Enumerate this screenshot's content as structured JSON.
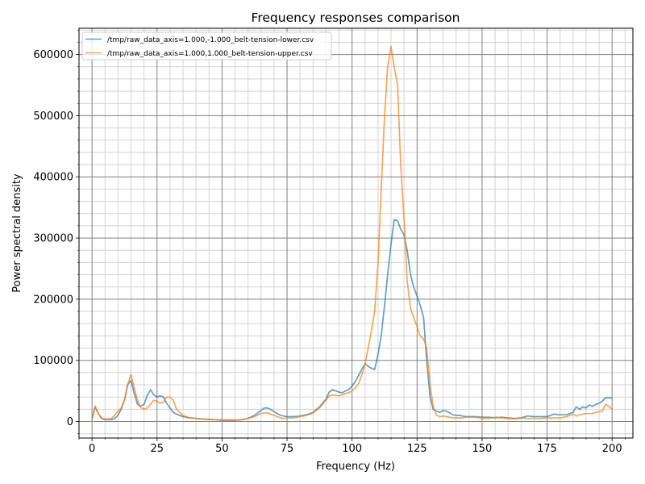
{
  "chart_data": {
    "type": "line",
    "title": "Frequency responses comparison",
    "xlabel": "Frequency (Hz)",
    "ylabel": "Power spectral density",
    "xlim": [
      -5,
      208
    ],
    "ylim": [
      -27000,
      643000
    ],
    "xticks": [
      0,
      25,
      50,
      75,
      100,
      125,
      150,
      175,
      200
    ],
    "xtick_labels": [
      "0",
      "25",
      "50",
      "75",
      "100",
      "125",
      "150",
      "175",
      "200"
    ],
    "yticks": [
      0,
      100000,
      200000,
      300000,
      400000,
      500000,
      600000
    ],
    "ytick_labels": [
      "0",
      "100000",
      "200000",
      "300000",
      "400000",
      "500000",
      "600000"
    ],
    "grid": true,
    "minor_grid": true,
    "legend_position": "top-left",
    "series": [
      {
        "name": "/tmp/raw_data_axis=1.000,-1.000_belt-tension-lower.csv",
        "color": "#1f77b4",
        "x": [
          0,
          1.2,
          2.5,
          3.7,
          5,
          6.2,
          7.5,
          8.7,
          10,
          11.2,
          12.5,
          13.7,
          15,
          16.2,
          17.5,
          18.7,
          20,
          21.2,
          22.5,
          23.7,
          25,
          26.2,
          27.5,
          28.7,
          30,
          31.2,
          32.5,
          33.7,
          35,
          36.2,
          37.5,
          40,
          42.5,
          45,
          47.5,
          50,
          52.5,
          55,
          57.5,
          60,
          62.5,
          65,
          66.2,
          67.5,
          68.7,
          70,
          71.2,
          72.5,
          73.7,
          75,
          77.5,
          80,
          82.5,
          85,
          87.5,
          90,
          91.2,
          92.5,
          93.7,
          95,
          96.2,
          97.5,
          98.7,
          100,
          101.2,
          102.5,
          103.7,
          105,
          106.2,
          107.5,
          108.7,
          110,
          111.2,
          112.5,
          113.7,
          115,
          116.2,
          117.5,
          118.7,
          120,
          121.2,
          122.5,
          123.7,
          125,
          126.2,
          127.5,
          128.7,
          130,
          131.2,
          132.5,
          133.7,
          135,
          136.2,
          137.5,
          138.7,
          140,
          141.2,
          142.5,
          143.7,
          145,
          147.5,
          150,
          152.5,
          155,
          157.5,
          160,
          162.5,
          165,
          167.5,
          170,
          172.5,
          175,
          177.5,
          180,
          182.5,
          185,
          186.2,
          187.5,
          188.7,
          190,
          191.2,
          192.5,
          193.7,
          195,
          196.2,
          197.5,
          198.7,
          200
        ],
        "y": [
          5000,
          24000,
          12000,
          5000,
          3000,
          3000,
          3000,
          5000,
          10000,
          20000,
          35000,
          60000,
          67000,
          46000,
          28000,
          25000,
          28000,
          42000,
          52000,
          44000,
          40000,
          42000,
          40000,
          30000,
          22000,
          15000,
          12000,
          10000,
          8000,
          7000,
          6000,
          5000,
          4000,
          3500,
          3000,
          2000,
          2000,
          2000,
          3000,
          5000,
          10000,
          18000,
          22000,
          22000,
          20000,
          16000,
          13000,
          10000,
          9000,
          8000,
          8000,
          9000,
          11000,
          15000,
          24000,
          37000,
          48000,
          52000,
          50000,
          48000,
          47000,
          50000,
          52000,
          58000,
          65000,
          75000,
          85000,
          95000,
          90000,
          87000,
          85000,
          110000,
          140000,
          190000,
          240000,
          290000,
          330000,
          328000,
          315000,
          305000,
          280000,
          240000,
          220000,
          205000,
          190000,
          170000,
          100000,
          40000,
          20000,
          17000,
          15000,
          18000,
          17000,
          14000,
          11000,
          10000,
          10000,
          9000,
          8000,
          8000,
          8000,
          7000,
          7000,
          6000,
          7000,
          6000,
          5000,
          6000,
          9000,
          8000,
          8000,
          8000,
          12000,
          11000,
          11000,
          15000,
          24000,
          20000,
          24000,
          22000,
          27000,
          25000,
          28000,
          30000,
          33000,
          39000,
          39000,
          38000
        ],
        "x_full": true
      },
      {
        "name": "/tmp/raw_data_axis=1.000,1.000_belt-tension-upper.csv",
        "color": "#ff7f0e",
        "x": [
          0,
          1.2,
          2.5,
          3.7,
          5,
          6.2,
          7.5,
          8.7,
          10,
          11.2,
          12.5,
          13.7,
          15,
          16.2,
          17.5,
          18.7,
          20,
          21.2,
          22.5,
          23.7,
          25,
          26.2,
          27.5,
          28.7,
          30,
          31.2,
          32.5,
          33.7,
          35,
          36.2,
          37.5,
          40,
          42.5,
          45,
          47.5,
          50,
          52.5,
          55,
          57.5,
          60,
          62.5,
          65,
          66.2,
          67.5,
          68.7,
          70,
          71.2,
          72.5,
          73.7,
          75,
          77.5,
          80,
          82.5,
          85,
          87.5,
          90,
          91.2,
          92.5,
          93.7,
          95,
          96.2,
          97.5,
          98.7,
          100,
          101.2,
          102.5,
          103.7,
          105,
          106.2,
          107.5,
          108.7,
          110,
          111.2,
          112.5,
          113.7,
          115,
          116.2,
          117.5,
          118.7,
          120,
          121.2,
          122.5,
          123.7,
          125,
          126.2,
          127.5,
          128.7,
          130,
          131.2,
          132.5,
          133.7,
          135,
          136.2,
          137.5,
          138.7,
          140,
          141.2,
          142.5,
          143.7,
          145,
          147.5,
          150,
          152.5,
          155,
          157.5,
          160,
          162.5,
          165,
          167.5,
          170,
          172.5,
          175,
          177.5,
          180,
          182.5,
          185,
          186.2,
          187.5,
          188.7,
          190,
          191.2,
          192.5,
          193.7,
          195,
          196.2,
          197.5,
          198.7,
          200
        ],
        "y": [
          2000,
          25000,
          12000,
          6000,
          4000,
          4000,
          5000,
          10000,
          17000,
          22000,
          35000,
          60000,
          77000,
          55000,
          35000,
          23000,
          20000,
          22000,
          28000,
          35000,
          33000,
          30000,
          32000,
          40000,
          40000,
          35000,
          20000,
          15000,
          10000,
          8000,
          6000,
          5000,
          4000,
          3500,
          3000,
          2500,
          2500,
          2500,
          3000,
          5000,
          8000,
          13000,
          14000,
          14000,
          12000,
          10000,
          8000,
          6000,
          5000,
          6000,
          6000,
          8000,
          10000,
          14000,
          22000,
          35000,
          42000,
          43000,
          43000,
          42000,
          44000,
          46000,
          47000,
          50000,
          55000,
          62000,
          75000,
          95000,
          120000,
          150000,
          180000,
          260000,
          380000,
          500000,
          580000,
          613000,
          580000,
          550000,
          420000,
          330000,
          230000,
          185000,
          170000,
          155000,
          140000,
          135000,
          120000,
          60000,
          25000,
          10000,
          8000,
          9000,
          8000,
          7000,
          6000,
          6000,
          6000,
          6000,
          7000,
          7000,
          7000,
          5000,
          5000,
          7000,
          6000,
          5000,
          4000,
          6000,
          5000,
          5000,
          5000,
          6000,
          6000,
          6000,
          8000,
          12000,
          9000,
          11000,
          12000,
          13000,
          13000,
          13000,
          15000,
          16000,
          17000,
          28000,
          25000,
          20000
        ]
      }
    ]
  }
}
